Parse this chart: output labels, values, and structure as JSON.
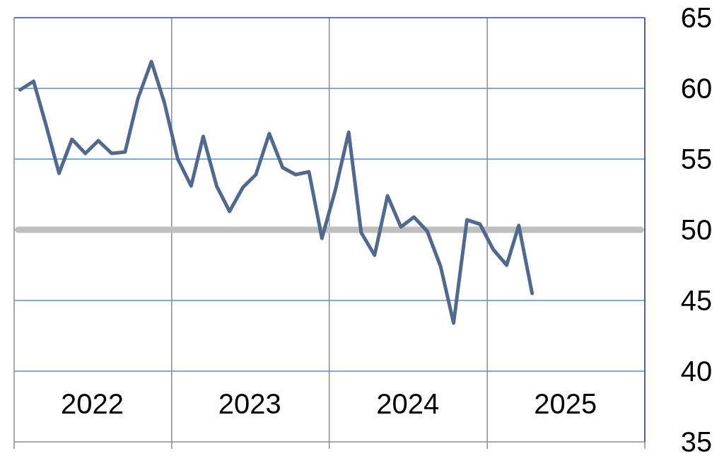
{
  "chart_data": {
    "type": "line",
    "x": [
      "2022-01-15",
      "2022-02-15",
      "2022-03-15",
      "2022-04-15",
      "2022-05-15",
      "2022-06-15",
      "2022-07-15",
      "2022-08-15",
      "2022-09-15",
      "2022-10-15",
      "2022-11-15",
      "2022-12-15",
      "2023-01-15",
      "2023-02-15",
      "2023-03-15",
      "2023-04-15",
      "2023-05-15",
      "2023-06-15",
      "2023-07-15",
      "2023-08-15",
      "2023-09-15",
      "2023-10-15",
      "2023-11-15",
      "2023-12-15",
      "2024-01-15",
      "2024-02-15",
      "2024-03-15",
      "2024-04-15",
      "2024-05-15",
      "2024-06-15",
      "2024-07-15",
      "2024-08-15",
      "2024-09-15",
      "2024-10-15",
      "2024-11-15",
      "2024-12-15",
      "2025-01-15",
      "2025-02-15",
      "2025-03-15",
      "2025-04-15"
    ],
    "series": [
      {
        "color": "#51698f",
        "values": [
          59.9,
          60.5,
          57.5,
          54.0,
          56.4,
          55.4,
          56.3,
          55.4,
          55.5,
          59.3,
          61.9,
          59.0,
          55.0,
          53.1,
          56.6,
          53.1,
          51.3,
          53.0,
          53.9,
          56.8,
          54.4,
          53.9,
          54.1,
          49.4,
          52.8,
          56.9,
          49.8,
          48.2,
          52.4,
          50.2,
          50.9,
          49.9,
          47.4,
          43.4,
          50.7,
          50.4,
          48.6,
          47.5,
          50.3,
          45.5
        ]
      }
    ],
    "xlim": [
      "2022-01-01",
      "2026-01-01"
    ],
    "xticks": [
      {
        "value": "2022-01-01",
        "label": null
      },
      {
        "value": "2022-07-01",
        "label": "2022"
      },
      {
        "value": "2023-01-01",
        "label": null
      },
      {
        "value": "2023-07-01",
        "label": "2023"
      },
      {
        "value": "2024-01-01",
        "label": null
      },
      {
        "value": "2024-07-01",
        "label": "2024"
      },
      {
        "value": "2025-01-01",
        "label": null
      },
      {
        "value": "2025-07-01",
        "label": "2025"
      },
      {
        "value": "2026-01-01",
        "label": null
      }
    ],
    "ylim": [
      35,
      65
    ],
    "yticks": [
      35,
      40,
      45,
      50,
      55,
      60,
      65
    ],
    "grid": true,
    "marker": "none",
    "line_style": "solid",
    "ref_lines": [
      {
        "axis": "y",
        "value": 50,
        "color": "#bfbfbf"
      }
    ]
  }
}
